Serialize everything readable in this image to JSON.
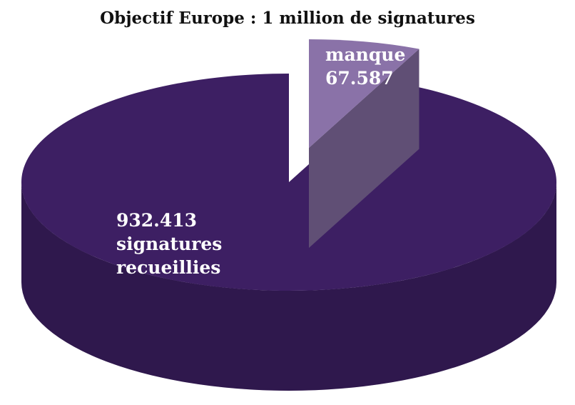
{
  "chart_data": {
    "type": "pie",
    "title": "Objectif Europe : 1 million de signatures",
    "categories": [
      "signatures recueillies",
      "manque"
    ],
    "values": [
      932413,
      67587
    ],
    "value_labels": [
      "932.413",
      "67.587"
    ],
    "colors": [
      "#3d1f63",
      "#8a72a8"
    ]
  }
}
